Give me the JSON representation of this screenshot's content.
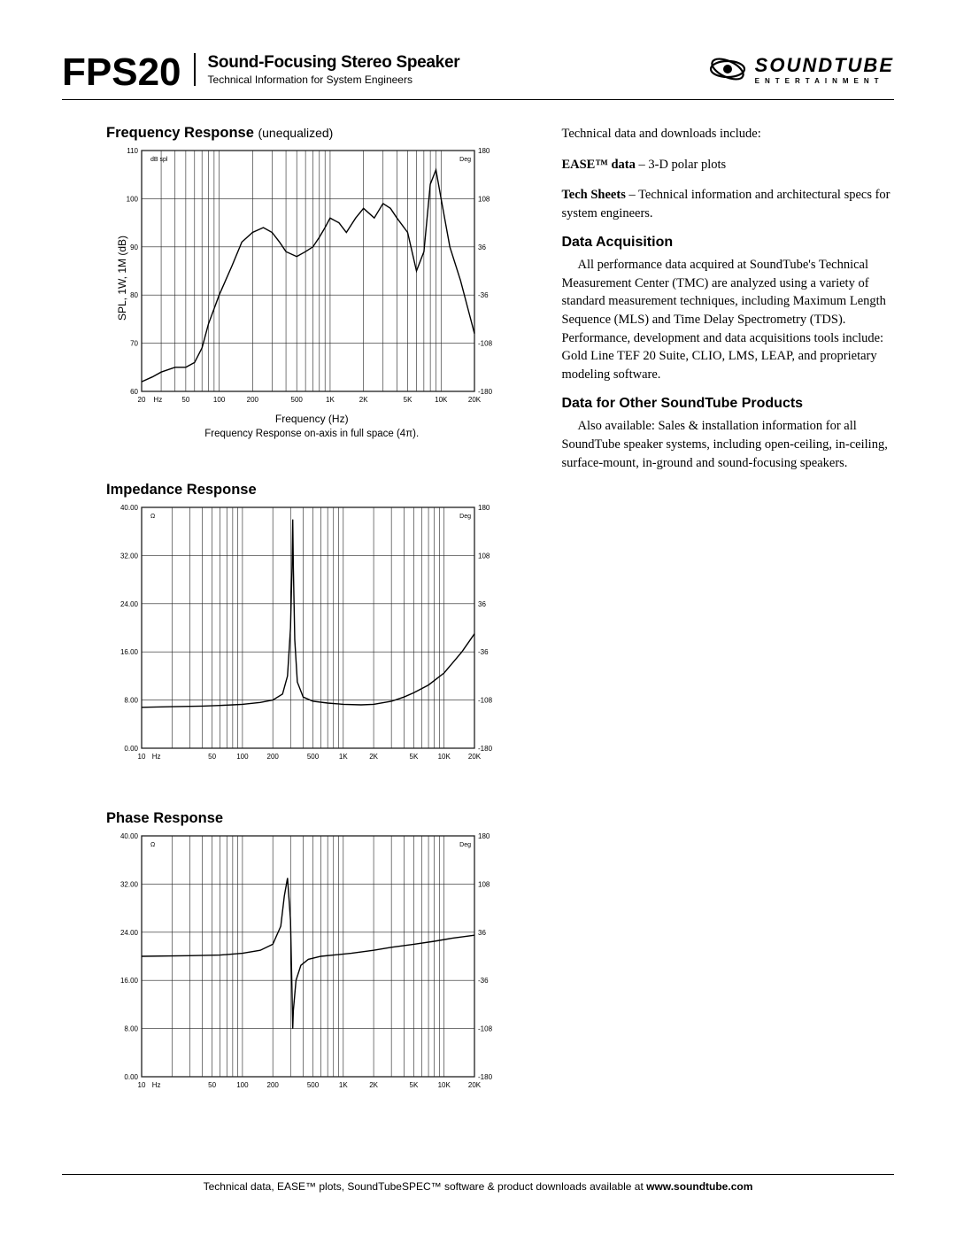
{
  "header": {
    "product_code": "FPS20",
    "title": "Sound-Focusing Stereo Speaker",
    "subtitle": "Technical Information for System Engineers",
    "brand_name": "SOUNDTUBE",
    "brand_tag": "ENTERTAINMENT"
  },
  "chart1": {
    "heading": "Frequency Response",
    "heading_sub": "(unequalized)",
    "y_axis": "SPL, 1W, 1M (dB)",
    "x_axis": "Frequency (Hz)",
    "caption": "Frequency Response on-axis in full space (4π).",
    "y_ticks": [
      "110",
      "100",
      "90",
      "80",
      "70",
      "60"
    ],
    "y_left_small": "dB spl",
    "y_right_small_top": "Deg",
    "y_right_ticks": [
      "180",
      "108",
      "36",
      "-36",
      "-108",
      "-180"
    ],
    "x_ticks": [
      "20",
      "Hz",
      "50",
      "100",
      "200",
      "500",
      "1K",
      "2K",
      "5K",
      "10K",
      "20K"
    ],
    "line_color": "#000000",
    "grid_color": "#202020",
    "background": "#ffffff",
    "stroke_width": 1.4,
    "data": [
      [
        20,
        62
      ],
      [
        25,
        63
      ],
      [
        30,
        64
      ],
      [
        40,
        65
      ],
      [
        50,
        65
      ],
      [
        60,
        66
      ],
      [
        70,
        69
      ],
      [
        80,
        74
      ],
      [
        100,
        80
      ],
      [
        130,
        86
      ],
      [
        160,
        91
      ],
      [
        200,
        93
      ],
      [
        250,
        94
      ],
      [
        300,
        93
      ],
      [
        350,
        91
      ],
      [
        400,
        89
      ],
      [
        500,
        88
      ],
      [
        600,
        89
      ],
      [
        700,
        90
      ],
      [
        800,
        92
      ],
      [
        900,
        94
      ],
      [
        1000,
        96
      ],
      [
        1200,
        95
      ],
      [
        1400,
        93
      ],
      [
        1700,
        96
      ],
      [
        2000,
        98
      ],
      [
        2500,
        96
      ],
      [
        3000,
        99
      ],
      [
        3500,
        98
      ],
      [
        4000,
        96
      ],
      [
        5000,
        93
      ],
      [
        6000,
        85
      ],
      [
        7000,
        89
      ],
      [
        8000,
        103
      ],
      [
        9000,
        106
      ],
      [
        10000,
        100
      ],
      [
        12000,
        90
      ],
      [
        15000,
        83
      ],
      [
        18000,
        76
      ],
      [
        20000,
        72
      ]
    ]
  },
  "chart2": {
    "heading": "Impedance Response",
    "y_ticks": [
      "40.00",
      "32.00",
      "24.00",
      "16.00",
      "8.00",
      "0.00"
    ],
    "y_left_small": "Ω",
    "y_right_small_top": "Deg",
    "y_right_ticks": [
      "180",
      "108",
      "36",
      "-36",
      "-108",
      "-180"
    ],
    "x_ticks": [
      "10",
      "Hz",
      "50",
      "100",
      "200",
      "500",
      "1K",
      "2K",
      "5K",
      "10K",
      "20K"
    ],
    "line_color": "#000000",
    "grid_color": "#202020",
    "background": "#ffffff",
    "stroke_width": 1.4,
    "data": [
      [
        10,
        6.8
      ],
      [
        20,
        6.9
      ],
      [
        40,
        7.0
      ],
      [
        60,
        7.1
      ],
      [
        80,
        7.2
      ],
      [
        100,
        7.3
      ],
      [
        150,
        7.6
      ],
      [
        200,
        8.0
      ],
      [
        250,
        9.0
      ],
      [
        280,
        12
      ],
      [
        300,
        20
      ],
      [
        310,
        30
      ],
      [
        315,
        38
      ],
      [
        320,
        30
      ],
      [
        330,
        18
      ],
      [
        350,
        11
      ],
      [
        400,
        8.5
      ],
      [
        500,
        7.8
      ],
      [
        700,
        7.5
      ],
      [
        1000,
        7.3
      ],
      [
        1500,
        7.2
      ],
      [
        2000,
        7.3
      ],
      [
        3000,
        7.8
      ],
      [
        4000,
        8.5
      ],
      [
        5000,
        9.2
      ],
      [
        7000,
        10.5
      ],
      [
        10000,
        12.5
      ],
      [
        15000,
        16
      ],
      [
        20000,
        19
      ]
    ]
  },
  "chart3": {
    "heading": "Phase Response",
    "y_ticks": [
      "40.00",
      "32.00",
      "24.00",
      "16.00",
      "8.00",
      "0.00"
    ],
    "y_left_small": "Ω",
    "y_right_small_top": "Deg",
    "y_right_ticks": [
      "180",
      "108",
      "36",
      "-36",
      "-108",
      "-180"
    ],
    "x_ticks": [
      "10",
      "Hz",
      "50",
      "100",
      "200",
      "500",
      "1K",
      "2K",
      "5K",
      "10K",
      "20K"
    ],
    "line_color": "#000000",
    "grid_color": "#202020",
    "background": "#ffffff",
    "stroke_width": 1.4,
    "data": [
      [
        10,
        20
      ],
      [
        30,
        20.1
      ],
      [
        60,
        20.2
      ],
      [
        100,
        20.5
      ],
      [
        150,
        21
      ],
      [
        200,
        22
      ],
      [
        240,
        25
      ],
      [
        260,
        30
      ],
      [
        280,
        33
      ],
      [
        300,
        26
      ],
      [
        310,
        14
      ],
      [
        315,
        8
      ],
      [
        320,
        11
      ],
      [
        340,
        16
      ],
      [
        380,
        18.5
      ],
      [
        450,
        19.5
      ],
      [
        600,
        20
      ],
      [
        800,
        20.2
      ],
      [
        1200,
        20.5
      ],
      [
        2000,
        21
      ],
      [
        3000,
        21.5
      ],
      [
        5000,
        22
      ],
      [
        8000,
        22.5
      ],
      [
        12000,
        23
      ],
      [
        20000,
        23.5
      ]
    ]
  },
  "right": {
    "intro": "Technical data and downloads include:",
    "ease_label": "EASE™ data",
    "ease_text": " – 3-D polar plots",
    "tech_label": "Tech Sheets",
    "tech_text": " – Technical information and architectural specs for system engineers.",
    "h1": "Data Acquisition",
    "p1": "All performance data acquired at SoundTube's Technical Measurement Center (TMC) are analyzed using a variety of standard measurement techniques, including Maximum Length Sequence (MLS) and Time Delay Spectrometry (TDS).  Performance, development and data acquisitions tools include: Gold Line TEF 20 Suite, CLIO, LMS, LEAP, and proprietary modeling software.",
    "h2": "Data for Other SoundTube Products",
    "p2": "Also available: Sales & installation information for all SoundTube speaker systems, including open-ceiling, in-ceiling, surface-mount, in-ground and sound-focusing speakers."
  },
  "footer": {
    "text_before": "Technical data, EASE™ plots, SoundTubeSPEC™ software & product downloads available at ",
    "url": "www.soundtube.com"
  }
}
